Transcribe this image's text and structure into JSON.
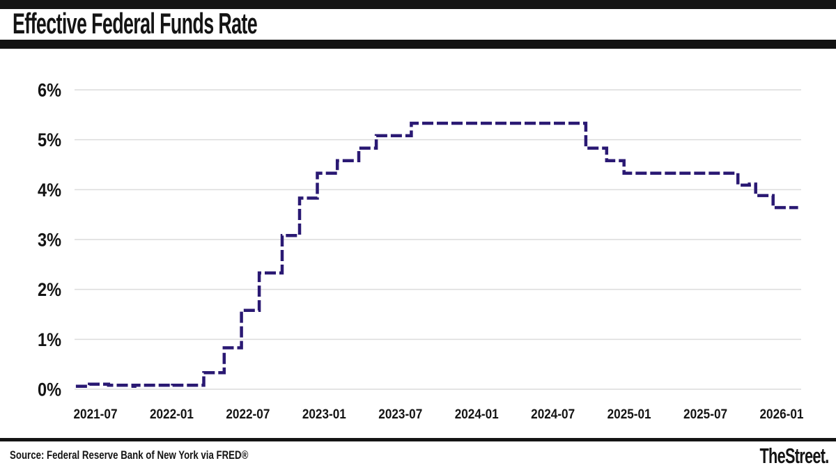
{
  "header": {
    "title": "Effective Federal Funds Rate"
  },
  "footer": {
    "source": "Source: Federal Reserve Bank of New York via FRED®",
    "brand": "TheStreet."
  },
  "colors": {
    "line": "#2a1973",
    "grid_line": "#dcdcdc",
    "bar_black": "#141414",
    "text": "#141414",
    "background": "#ffffff"
  },
  "chart_data": {
    "type": "line",
    "step": true,
    "title": "Effective Federal Funds Rate",
    "xlabel": "",
    "ylabel": "",
    "units": "percent",
    "grid": "horizontal-only",
    "legend": "none",
    "line_style": "dashed",
    "line_color": "#2a1973",
    "ylim": [
      0,
      6
    ],
    "y_ticks": [
      "6%",
      "5%",
      "4%",
      "3%",
      "2%",
      "1%",
      "0%"
    ],
    "y_tick_values": [
      6,
      5,
      4,
      3,
      2,
      1,
      0
    ],
    "x_ticks": [
      "2021-07",
      "2022-01",
      "2022-07",
      "2023-01",
      "2023-07",
      "2024-01",
      "2024-07",
      "2025-01",
      "2025-07",
      "2026-01"
    ],
    "x_start": "2021-05-15",
    "x_end": "2026-02-10",
    "series": [
      {
        "name": "Effective Federal Funds Rate (%)",
        "points": [
          [
            "2021-05-15",
            0.06
          ],
          [
            "2021-06-17",
            0.1
          ],
          [
            "2021-08-02",
            0.08
          ],
          [
            "2021-09-30",
            0.06
          ],
          [
            "2021-10-04",
            0.08
          ],
          [
            "2021-12-31",
            0.07
          ],
          [
            "2022-01-03",
            0.08
          ],
          [
            "2022-03-17",
            0.33
          ],
          [
            "2022-05-05",
            0.83
          ],
          [
            "2022-06-16",
            1.58
          ],
          [
            "2022-07-28",
            2.33
          ],
          [
            "2022-09-22",
            3.08
          ],
          [
            "2022-11-03",
            3.83
          ],
          [
            "2022-12-15",
            4.33
          ],
          [
            "2023-02-02",
            4.58
          ],
          [
            "2023-03-23",
            4.83
          ],
          [
            "2023-05-04",
            5.08
          ],
          [
            "2023-07-27",
            5.33
          ],
          [
            "2024-09-19",
            4.83
          ],
          [
            "2024-11-08",
            4.58
          ],
          [
            "2024-12-19",
            4.33
          ],
          [
            "2025-09-18",
            4.09
          ],
          [
            "2025-10-15",
            4.11
          ],
          [
            "2025-10-30",
            3.88
          ],
          [
            "2025-12-11",
            3.64
          ]
        ]
      }
    ]
  }
}
